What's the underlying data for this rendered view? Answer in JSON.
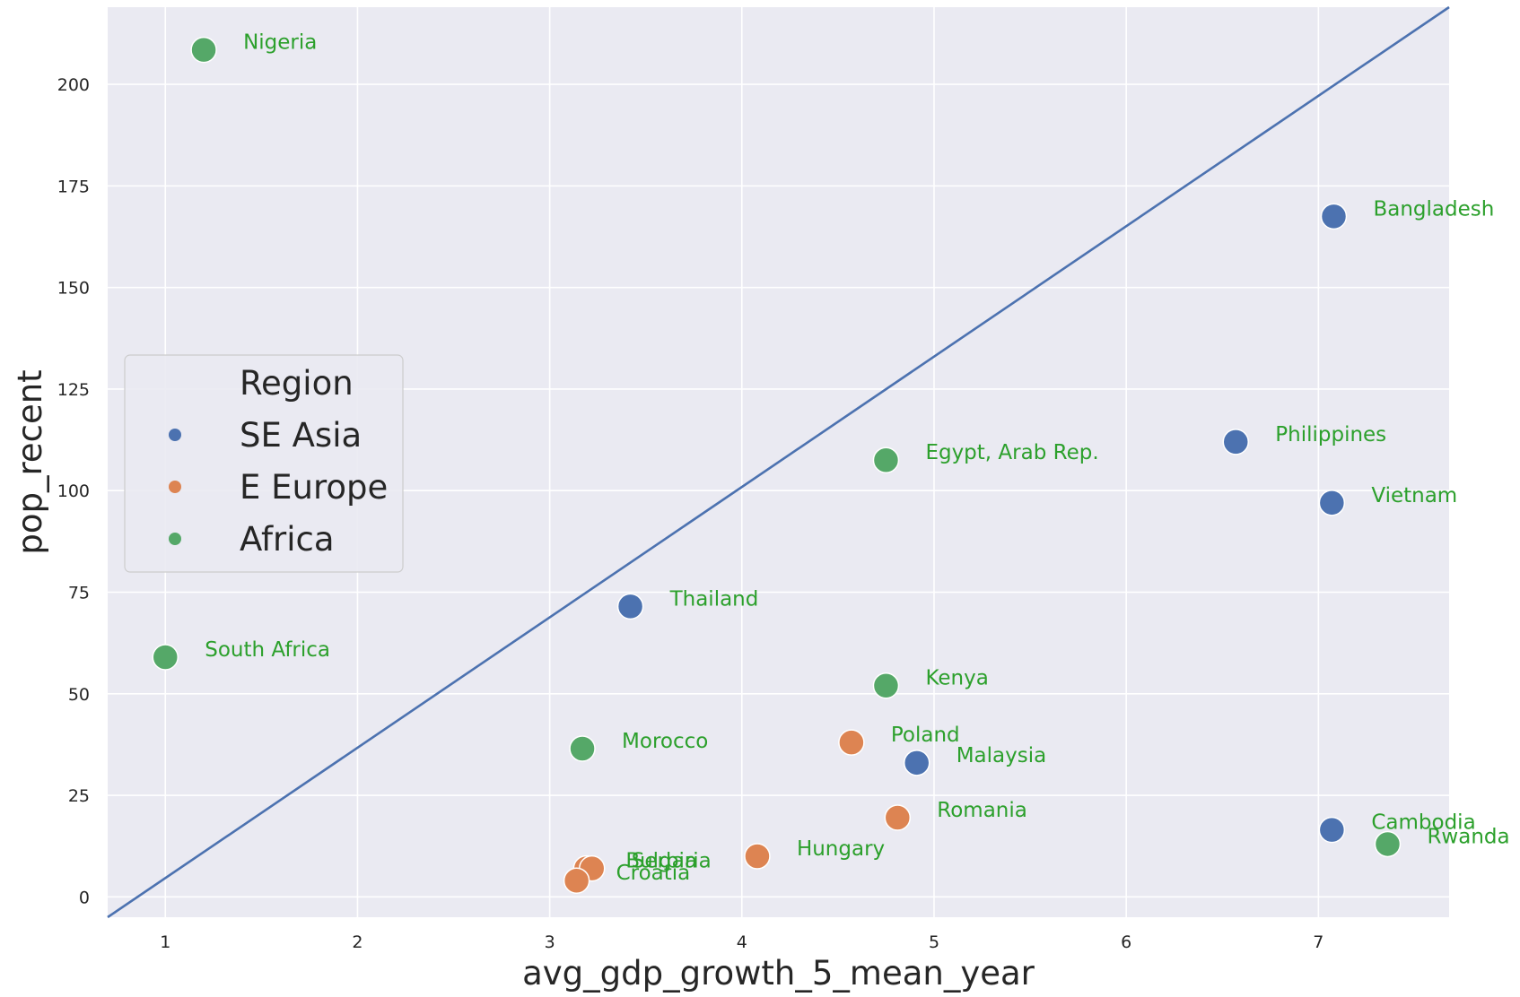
{
  "chart_data": {
    "type": "scatter",
    "xlabel": "avg_gdp_growth_5_mean_year",
    "ylabel": "pop_recent",
    "xlim": [
      0.7,
      7.68
    ],
    "ylim": [
      -5,
      219
    ],
    "xticks": [
      1,
      2,
      3,
      4,
      5,
      6,
      7
    ],
    "yticks": [
      0,
      25,
      50,
      75,
      100,
      125,
      150,
      175,
      200
    ],
    "grid": true,
    "background": "#eaeaf2",
    "legend": {
      "title": "Region",
      "placement": "center-left",
      "entries": [
        {
          "label": "SE Asia",
          "color": "#4c72b0"
        },
        {
          "label": "E Europe",
          "color": "#dd8452"
        },
        {
          "label": "Africa",
          "color": "#55a868"
        }
      ]
    },
    "label_color": "#2ca02c",
    "reference_line": {
      "color": "#4c72b0",
      "points": [
        [
          0.7,
          -5
        ],
        [
          7.68,
          219
        ]
      ]
    },
    "points": [
      {
        "label": "Nigeria",
        "region": "Africa",
        "x": 1.2,
        "y": 208.5
      },
      {
        "label": "South Africa",
        "region": "Africa",
        "x": 1.0,
        "y": 59.0
      },
      {
        "label": "Egypt, Arab Rep.",
        "region": "Africa",
        "x": 4.75,
        "y": 107.5
      },
      {
        "label": "Kenya",
        "region": "Africa",
        "x": 4.75,
        "y": 52.0
      },
      {
        "label": "Morocco",
        "region": "Africa",
        "x": 3.17,
        "y": 36.5
      },
      {
        "label": "Rwanda",
        "region": "Africa",
        "x": 7.36,
        "y": 13.0
      },
      {
        "label": "Bangladesh",
        "region": "SE Asia",
        "x": 7.08,
        "y": 167.5
      },
      {
        "label": "Philippines",
        "region": "SE Asia",
        "x": 6.57,
        "y": 112.0
      },
      {
        "label": "Vietnam",
        "region": "SE Asia",
        "x": 7.07,
        "y": 97.0
      },
      {
        "label": "Thailand",
        "region": "SE Asia",
        "x": 3.42,
        "y": 71.5
      },
      {
        "label": "Malaysia",
        "region": "SE Asia",
        "x": 4.91,
        "y": 33.0
      },
      {
        "label": "Cambodia",
        "region": "SE Asia",
        "x": 7.07,
        "y": 16.5
      },
      {
        "label": "Poland",
        "region": "E Europe",
        "x": 4.57,
        "y": 38.0
      },
      {
        "label": "Romania",
        "region": "E Europe",
        "x": 4.81,
        "y": 19.5
      },
      {
        "label": "Hungary",
        "region": "E Europe",
        "x": 4.08,
        "y": 10.0
      },
      {
        "label": "Bulgaria",
        "region": "E Europe",
        "x": 3.19,
        "y": 7.0
      },
      {
        "label": "Serbia",
        "region": "E Europe",
        "x": 3.22,
        "y": 7.0
      },
      {
        "label": "Croatia",
        "region": "E Europe",
        "x": 3.14,
        "y": 4.0
      }
    ]
  }
}
